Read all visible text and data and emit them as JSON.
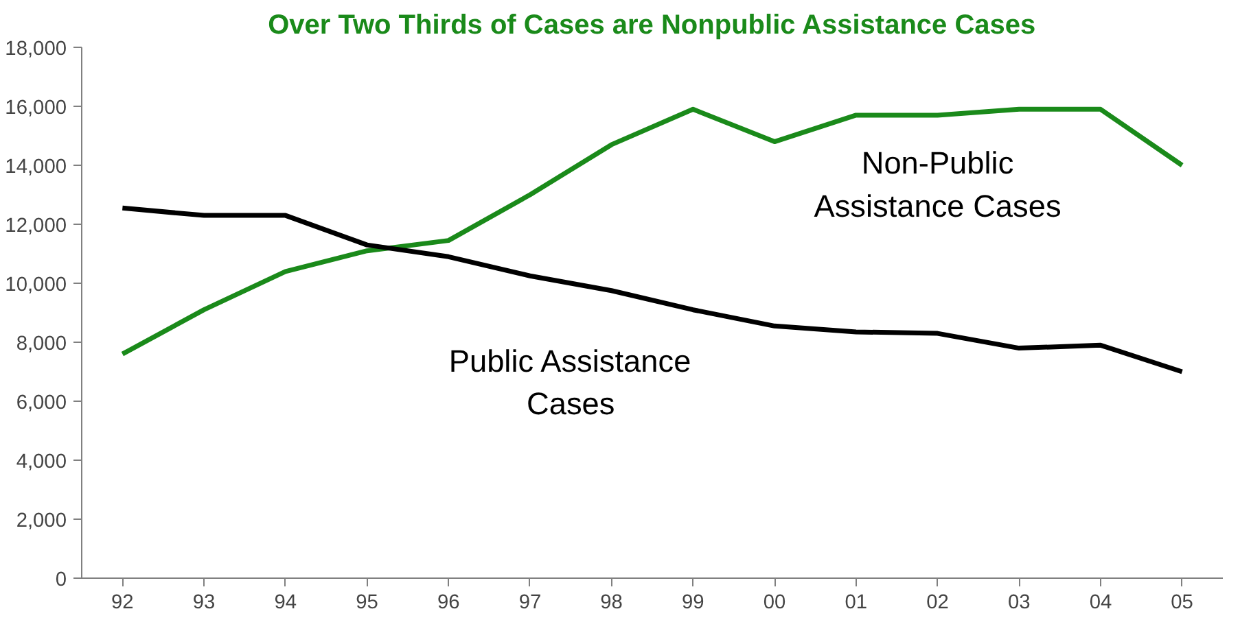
{
  "chart_data": {
    "type": "line",
    "title": "Over Two Thirds of Cases are Nonpublic Assistance Cases",
    "categories": [
      "92",
      "93",
      "94",
      "95",
      "96",
      "97",
      "98",
      "99",
      "00",
      "01",
      "02",
      "03",
      "04",
      "05"
    ],
    "series": [
      {
        "name": "Non-Public\nAssistance Cases",
        "color": "#1a8a1a",
        "values": [
          7600,
          9100,
          10400,
          11100,
          11450,
          13000,
          14700,
          15900,
          14800,
          15700,
          15700,
          15900,
          15900,
          14000
        ]
      },
      {
        "name": "Public Assistance\nCases",
        "color": "#000000",
        "values": [
          12550,
          12300,
          12300,
          11300,
          10900,
          10250,
          9750,
          9100,
          8550,
          8350,
          8300,
          7800,
          7900,
          7000
        ]
      }
    ],
    "ylim": [
      0,
      18000
    ],
    "yticks": [
      {
        "value": 0,
        "label": "0"
      },
      {
        "value": 2000,
        "label": "2,000"
      },
      {
        "value": 4000,
        "label": "4,000"
      },
      {
        "value": 6000,
        "label": "6,000"
      },
      {
        "value": 8000,
        "label": "8,000"
      },
      {
        "value": 10000,
        "label": "10,000"
      },
      {
        "value": 12000,
        "label": "12,000"
      },
      {
        "value": 14000,
        "label": "14,000"
      },
      {
        "value": 16000,
        "label": "16,000"
      },
      {
        "value": 18000,
        "label": "18,000"
      }
    ],
    "grid": false,
    "marker": "none",
    "line_style": "solid"
  }
}
